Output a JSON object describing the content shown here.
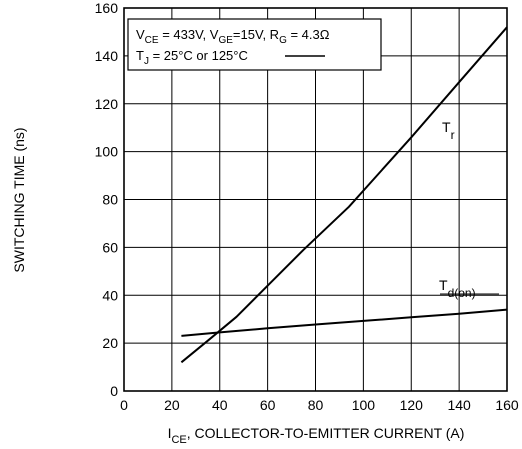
{
  "chart_data": {
    "type": "line",
    "xlabel": {
      "main": "I",
      "sub": "CE",
      "rest": ", COLLECTOR-TO-EMITTER CURRENT (A)"
    },
    "ylabel": "SWITCHING TIME (ns)",
    "xlim": [
      0,
      160
    ],
    "ylim": [
      0,
      160
    ],
    "x_ticks": [
      0,
      20,
      40,
      60,
      80,
      100,
      120,
      140,
      160
    ],
    "y_ticks": [
      0,
      20,
      40,
      60,
      80,
      100,
      120,
      140,
      160
    ],
    "x_tick_labels": [
      "0",
      "20",
      "40",
      "60",
      "80",
      "100",
      "120",
      "140",
      "160"
    ],
    "y_tick_labels": [
      "0",
      "20",
      "40",
      "60",
      "80",
      "100",
      "120",
      "140",
      "160"
    ],
    "grid": true,
    "legend": {
      "line1": [
        {
          "text": "V",
          "sub": "CE"
        },
        {
          "text": " = 433V, V",
          "sub": "GE"
        },
        {
          "text": "=15V, R",
          "sub": "G"
        },
        {
          "text": " = 4.3Ω",
          "sub": ""
        }
      ],
      "line2": [
        {
          "text": "T",
          "sub": "J"
        },
        {
          "text": " = 25°C or 125°C",
          "sub": ""
        }
      ]
    },
    "series": [
      {
        "name": "T",
        "name_sub": "r",
        "x": [
          24,
          35,
          47,
          60,
          75,
          94,
          120,
          140,
          160
        ],
        "y": [
          12,
          21,
          31,
          44,
          59,
          77,
          106,
          129,
          152
        ]
      },
      {
        "name": "T",
        "name_sub": "d(on)",
        "x": [
          24,
          40,
          60,
          80,
          100,
          120,
          140,
          160
        ],
        "y": [
          23,
          24.5,
          26.2,
          27.8,
          29.3,
          30.8,
          32.3,
          34
        ]
      }
    ]
  }
}
